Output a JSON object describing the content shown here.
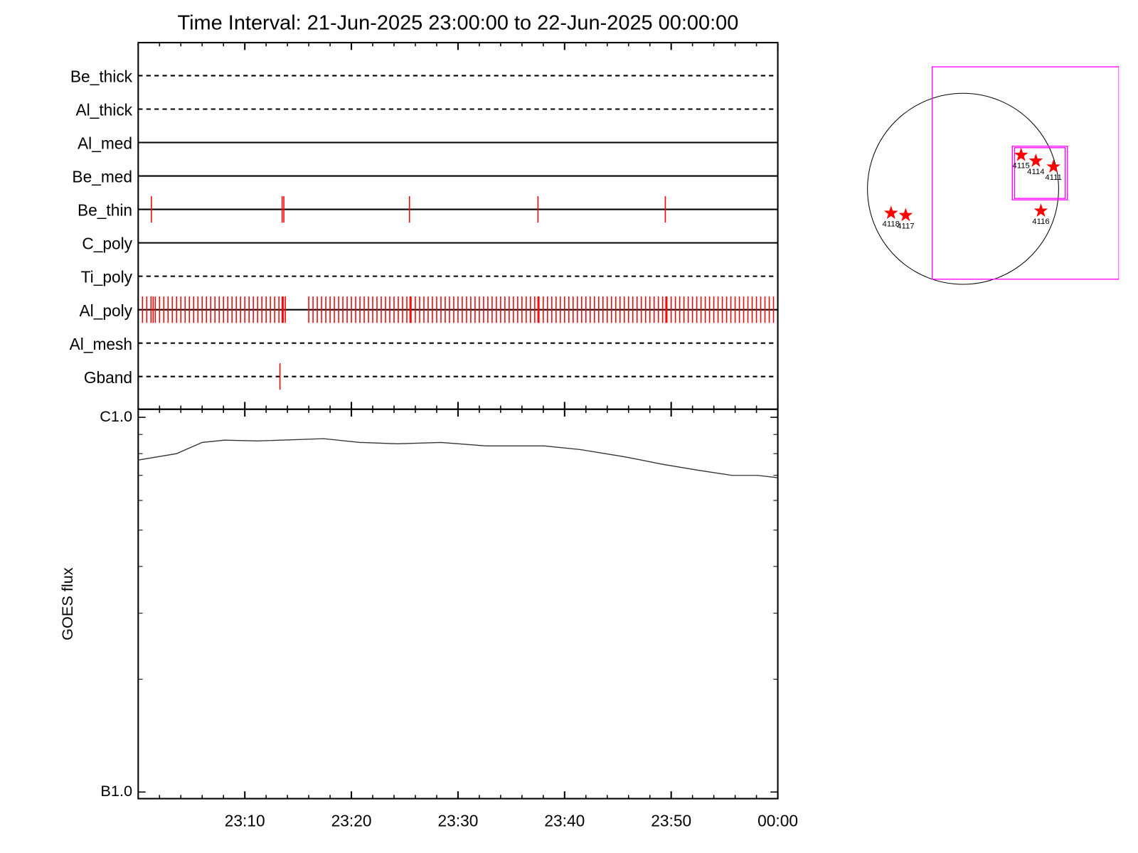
{
  "chart_data": [
    {
      "type": "timeline",
      "title": "Time Interval: 21-Jun-2025 23:00:00 to 22-Jun-2025 00:00:00",
      "xlim": [
        0,
        60
      ],
      "xticks": [
        10,
        20,
        30,
        40,
        50,
        60
      ],
      "color": "#ff0000",
      "filters": [
        {
          "name": "Be_thick",
          "line": "dashed",
          "exposures": []
        },
        {
          "name": "Al_thick",
          "line": "dashed",
          "exposures": []
        },
        {
          "name": "Al_med",
          "line": "solid",
          "exposures": []
        },
        {
          "name": "Be_med",
          "line": "solid",
          "exposures": []
        },
        {
          "name": "Be_thin",
          "line": "solid",
          "exposures": [
            1.24,
            13.5,
            13.66,
            25.45,
            37.5,
            49.45
          ]
        },
        {
          "name": "C_poly",
          "line": "solid",
          "exposures": []
        },
        {
          "name": "Ti_poly",
          "line": "dashed",
          "exposures": []
        },
        {
          "name": "Al_poly",
          "line": "solid",
          "exposures": [
            0.4,
            0.8,
            1.2,
            1.4,
            1.6,
            2,
            2.4,
            2.8,
            3.2,
            3.6,
            4,
            4.4,
            4.8,
            5.2,
            5.6,
            6,
            6.4,
            6.8,
            7.2,
            7.6,
            8,
            8.4,
            8.8,
            9.2,
            9.6,
            10,
            10.4,
            10.8,
            11.2,
            11.6,
            12,
            12.4,
            12.8,
            13.2,
            13.5,
            13.6,
            13.8,
            16,
            16.4,
            16.8,
            17.2,
            17.6,
            18,
            18.4,
            18.8,
            19.2,
            19.6,
            20,
            20.4,
            20.8,
            21.2,
            21.6,
            22,
            22.4,
            22.8,
            23.2,
            23.6,
            24,
            24.4,
            24.8,
            25.2,
            25.5,
            25.6,
            26,
            26.4,
            26.8,
            27.2,
            27.6,
            28,
            28.4,
            28.8,
            29.2,
            29.6,
            30,
            30.4,
            30.8,
            31.2,
            31.6,
            32,
            32.4,
            32.8,
            33.2,
            33.6,
            34,
            34.4,
            34.8,
            35.2,
            35.6,
            36,
            36.4,
            36.8,
            37.2,
            37.5,
            37.6,
            38,
            38.4,
            38.8,
            39.2,
            39.6,
            40,
            40.4,
            40.8,
            41.2,
            41.6,
            42,
            42.4,
            42.8,
            43.2,
            43.6,
            44,
            44.4,
            44.8,
            45.2,
            45.6,
            46,
            46.4,
            46.8,
            47.2,
            47.6,
            48,
            48.4,
            48.8,
            49.2,
            49.5,
            49.6,
            50,
            50.4,
            50.8,
            51.2,
            51.6,
            52,
            52.4,
            52.8,
            53.2,
            53.6,
            54,
            54.4,
            54.8,
            55.2,
            55.6,
            56,
            56.4,
            56.8,
            57.2,
            57.6,
            58,
            58.4,
            58.8,
            59.2,
            59.6
          ]
        },
        {
          "name": "Al_mesh",
          "line": "dashed",
          "exposures": []
        },
        {
          "name": "Gband",
          "line": "dashed",
          "exposures": [
            13.3
          ]
        }
      ]
    },
    {
      "type": "line",
      "y_label": "GOES flux",
      "log_y": true,
      "color": "#333333",
      "xlim": [
        0,
        60
      ],
      "xticks": [
        {
          "value": 10,
          "label": "23:10"
        },
        {
          "value": 20,
          "label": "23:20"
        },
        {
          "value": 30,
          "label": "23:30"
        },
        {
          "value": 40,
          "label": "23:40"
        },
        {
          "value": 50,
          "label": "23:50"
        },
        {
          "value": 60,
          "label": "00:00"
        }
      ],
      "ylim": [
        1e-07,
        1e-06
      ],
      "yticks": [
        {
          "value": 1e-06,
          "label": "C1.0"
        },
        {
          "value": 1e-07,
          "label": "B1.0"
        }
      ],
      "yminor": [
        9e-07,
        8e-07,
        7e-07,
        6e-07,
        5e-07,
        4e-07,
        3e-07,
        2e-07
      ],
      "x": [
        0,
        3.6,
        6,
        8.1,
        11.2,
        17.4,
        20.8,
        24.3,
        28.4,
        32.6,
        38.1,
        41.5,
        45.7,
        49.1,
        52.6,
        55.7,
        58.1,
        60
      ],
      "values": [
        7.69e-07,
        8e-07,
        8.57e-07,
        8.69e-07,
        8.65e-07,
        8.77e-07,
        8.57e-07,
        8.5e-07,
        8.57e-07,
        8.39e-07,
        8.39e-07,
        8.2e-07,
        7.84e-07,
        7.5e-07,
        7.22e-07,
        7e-07,
        7e-07,
        6.9e-07
      ]
    },
    {
      "type": "map",
      "disk_radius": 945,
      "fov_color": "#ff00ff",
      "star_color": "#ff0000",
      "fovs": [
        {
          "x": [
            -305,
            1541
          ],
          "y": [
            -894,
            1207
          ]
        },
        {
          "x": [
            487,
            1032
          ],
          "y": [
            -109,
            422
          ]
        },
        {
          "x": [
            509,
            1011
          ],
          "y": [
            -95,
            407
          ]
        }
      ],
      "regions": [
        {
          "label": "4115",
          "x": 574,
          "y": 334
        },
        {
          "label": "4114",
          "x": 720,
          "y": 276
        },
        {
          "label": "4111",
          "x": 894,
          "y": 218
        },
        {
          "label": "4116",
          "x": 770,
          "y": -218
        },
        {
          "label": "4118",
          "x": -712,
          "y": -240
        },
        {
          "label": "4117",
          "x": -567,
          "y": -262
        }
      ]
    }
  ]
}
